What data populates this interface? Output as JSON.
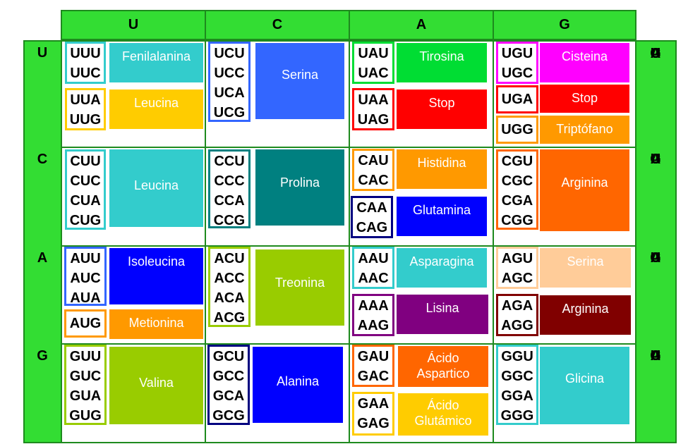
{
  "columns": [
    "U",
    "C",
    "A",
    "G"
  ],
  "rows": [
    "U",
    "C",
    "A",
    "G"
  ],
  "third_base": [
    "U",
    "C",
    "A",
    "G"
  ],
  "colors": {
    "Fenilalanina": "#33cccc",
    "Leucina": "#ffcc00",
    "Leucina2": "#33cccc",
    "Serina": "#3366ff",
    "Tirosina": "#00dd33",
    "Stop": "#ff0000",
    "Cisteina": "#ff00ff",
    "Triptofano": "#ff9900",
    "Prolina": "#008080",
    "Histidina": "#ff9900",
    "Glutamina": "#0000ff",
    "Arginina": "#ff6600",
    "Isoleucina": "#0000ff",
    "Metionina": "#ff9900",
    "Treonina": "#99cc00",
    "Asparagina": "#33cccc",
    "Lisina": "#800080",
    "Serina2": "#ffcc99",
    "Arginina2": "#800000",
    "Valina": "#99cc00",
    "Alanina": "#0000ff",
    "AcidoAspartico": "#ff6600",
    "AcidoGlutamico": "#ffcc00",
    "Glicina": "#33cccc"
  },
  "groups": {
    "UU1": {
      "codons": [
        "UUU",
        "UUC"
      ],
      "name": "Fenilalanina"
    },
    "UU2": {
      "codons": [
        "UUA",
        "UUG"
      ],
      "name": "Leucina"
    },
    "UC1": {
      "codons": [
        "UCU",
        "UCC",
        "UCA",
        "UCG"
      ],
      "name": "Serina"
    },
    "UA1": {
      "codons": [
        "UAU",
        "UAC"
      ],
      "name": "Tirosina"
    },
    "UA2": {
      "codons": [
        "UAA",
        "UAG"
      ],
      "name": "Stop"
    },
    "UG1": {
      "codons": [
        "UGU",
        "UGC"
      ],
      "name": "Cisteina"
    },
    "UG2": {
      "codons": [
        "UGA"
      ],
      "name": "Stop"
    },
    "UG3": {
      "codons": [
        "UGG"
      ],
      "name": "Triptófano"
    },
    "CU1": {
      "codons": [
        "CUU",
        "CUC",
        "CUA",
        "CUG"
      ],
      "name": "Leucina"
    },
    "CC1": {
      "codons": [
        "CCU",
        "CCC",
        "CCA",
        "CCG"
      ],
      "name": "Prolina"
    },
    "CA1": {
      "codons": [
        "CAU",
        "CAC"
      ],
      "name": "Histidina"
    },
    "CA2": {
      "codons": [
        "CAA",
        "CAG"
      ],
      "name": "Glutamina"
    },
    "CG1": {
      "codons": [
        "CGU",
        "CGC",
        "CGA",
        "CGG"
      ],
      "name": "Arginina"
    },
    "AU1": {
      "codons": [
        "AUU",
        "AUC",
        "AUA"
      ],
      "name": "Isoleucina"
    },
    "AU2": {
      "codons": [
        "AUG"
      ],
      "name": "Metionina"
    },
    "AC1": {
      "codons": [
        "ACU",
        "ACC",
        "ACA",
        "ACG"
      ],
      "name": "Treonina"
    },
    "AA1": {
      "codons": [
        "AAU",
        "AAC"
      ],
      "name": "Asparagina"
    },
    "AA2": {
      "codons": [
        "AAA",
        "AAG"
      ],
      "name": "Lisina"
    },
    "AG1": {
      "codons": [
        "AGU",
        "AGC"
      ],
      "name": "Serina"
    },
    "AG2": {
      "codons": [
        "AGA",
        "AGG"
      ],
      "name": "Arginina"
    },
    "GU1": {
      "codons": [
        "GUU",
        "GUC",
        "GUA",
        "GUG"
      ],
      "name": "Valina"
    },
    "GC1": {
      "codons": [
        "GCU",
        "GCC",
        "GCA",
        "GCG"
      ],
      "name": "Alanina"
    },
    "GA1": {
      "codons": [
        "GAU",
        "GAC"
      ],
      "name": "Ácido\nAspartico"
    },
    "GA2": {
      "codons": [
        "GAA",
        "GAG"
      ],
      "name": "Ácido\nGlutámico"
    },
    "GG1": {
      "codons": [
        "GGU",
        "GGC",
        "GGA",
        "GGG"
      ],
      "name": "Glicina"
    }
  }
}
